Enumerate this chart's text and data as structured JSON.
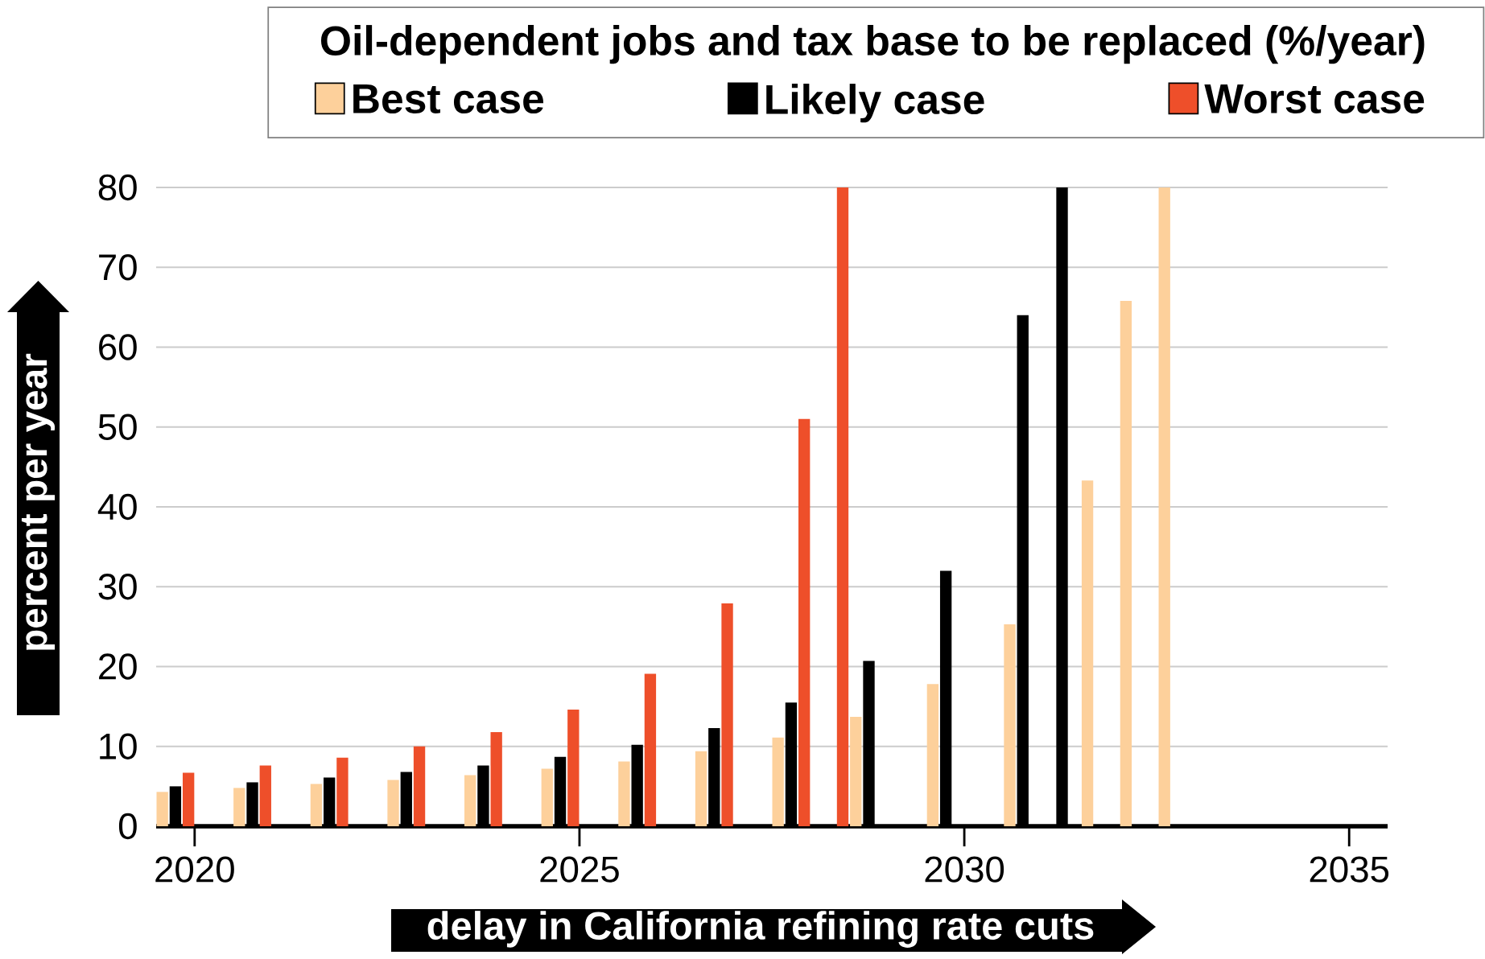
{
  "chart_data": {
    "type": "bar",
    "legend_title": "Oil-dependent jobs and tax base to be replaced (%/year)",
    "xlabel": "delay in California refining rate cuts",
    "ylabel": "percent per year",
    "series": [
      {
        "name": "Best case",
        "color": "#fdd09b",
        "x": [
          2019.58,
          2020.58,
          2021.58,
          2022.58,
          2023.58,
          2024.58,
          2025.58,
          2026.58,
          2027.58,
          2028.59,
          2029.59,
          2030.59,
          2031.6,
          2032.1,
          2032.6
        ],
        "values": [
          4.3,
          4.8,
          5.3,
          5.8,
          6.4,
          7.2,
          8.1,
          9.4,
          11.1,
          13.7,
          17.8,
          25.3,
          43.3,
          65.8,
          80
        ]
      },
      {
        "name": "Likely case",
        "color": "#000000",
        "x": [
          2019.75,
          2020.75,
          2021.75,
          2022.75,
          2023.75,
          2024.75,
          2025.75,
          2026.75,
          2027.75,
          2028.76,
          2029.76,
          2030.76,
          2031.27
        ],
        "values": [
          5.0,
          5.5,
          6.1,
          6.8,
          7.6,
          8.7,
          10.2,
          12.3,
          15.5,
          20.7,
          32,
          64,
          80
        ]
      },
      {
        "name": "Worst case",
        "color": "#ee4f2a",
        "x": [
          2019.92,
          2020.92,
          2021.92,
          2022.92,
          2023.92,
          2024.92,
          2025.92,
          2026.92,
          2027.92,
          2028.42
        ],
        "values": [
          6.7,
          7.6,
          8.6,
          10.0,
          11.8,
          14.6,
          19.1,
          27.9,
          51,
          80
        ]
      }
    ],
    "xlim": [
      2019.5,
      2035.5
    ],
    "xticks": [
      2020,
      2025,
      2030,
      2035
    ],
    "ylim": [
      0,
      80
    ],
    "yticks": [
      0,
      10,
      20,
      30,
      40,
      50,
      60,
      70,
      80
    ],
    "grid": "y",
    "legend": "top"
  }
}
